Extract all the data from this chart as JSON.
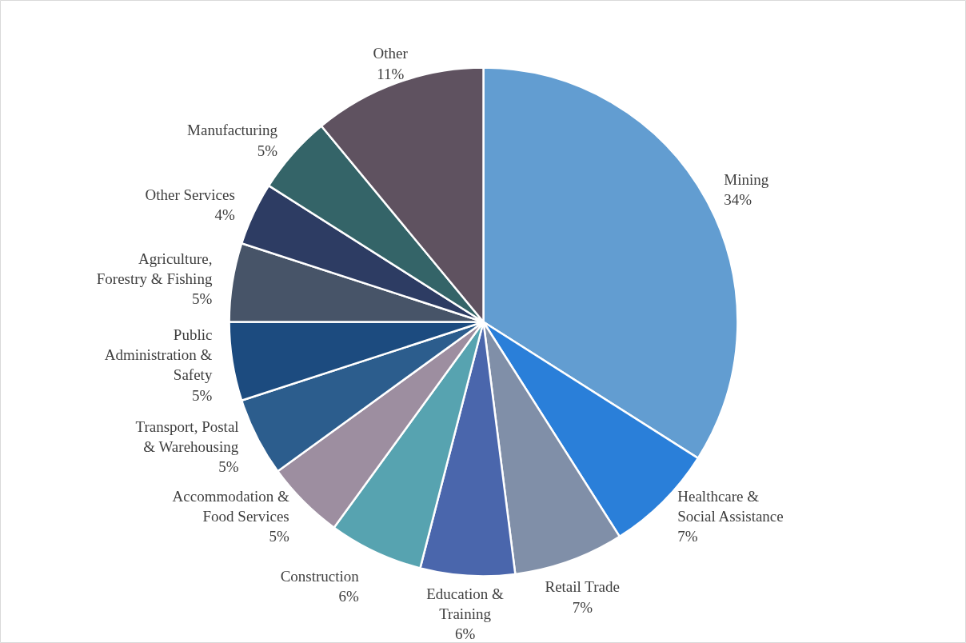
{
  "chart_data": {
    "type": "pie",
    "categories": [
      "Mining",
      "Healthcare & Social Assistance",
      "Retail Trade",
      "Education & Training",
      "Construction",
      "Accommodation & Food Services",
      "Transport, Postal & Warehousing",
      "Public Administration & Safety",
      "Agriculture, Forestry & Fishing",
      "Other Services",
      "Manufacturing",
      "Other"
    ],
    "values": [
      34,
      7,
      7,
      6,
      6,
      5,
      5,
      5,
      5,
      4,
      5,
      11
    ],
    "value_labels": [
      "34%",
      "7%",
      "7%",
      "6%",
      "6%",
      "5%",
      "5%",
      "5%",
      "5%",
      "4%",
      "5%",
      "11%"
    ],
    "colors": [
      "#629dd1",
      "#2a7fd9",
      "#808fa8",
      "#4a66ac",
      "#57a3b0",
      "#9d8ea0",
      "#2c5d8d",
      "#1c4b7f",
      "#475468",
      "#2d3c63",
      "#346468",
      "#5f5260"
    ],
    "legend": false
  }
}
